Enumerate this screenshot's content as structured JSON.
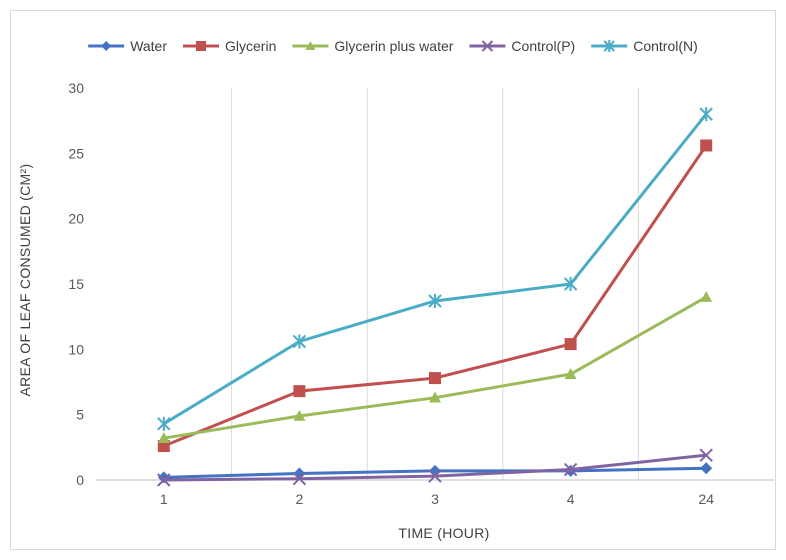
{
  "chart_data": {
    "type": "line",
    "categories": [
      "1",
      "2",
      "3",
      "4",
      "24"
    ],
    "xlabel": "TIME (HOUR)",
    "ylabel": "AREA OF LEAF CONSUMED (CM²)",
    "ylim": [
      0,
      30
    ],
    "yticks": [
      "0",
      "5",
      "10",
      "15",
      "20",
      "25",
      "30"
    ],
    "grid": "vertical",
    "legend_position": "top",
    "series": [
      {
        "name": "Water",
        "color": "#4472C4",
        "marker": "diamond",
        "values": [
          0.2,
          0.5,
          0.7,
          0.7,
          0.9
        ]
      },
      {
        "name": "Glycerin",
        "color": "#C0504D",
        "marker": "square",
        "values": [
          2.6,
          6.8,
          7.8,
          10.4,
          25.6
        ]
      },
      {
        "name": "Glycerin plus water",
        "color": "#9BBB59",
        "marker": "triangle",
        "values": [
          3.2,
          4.9,
          6.3,
          8.1,
          14.0
        ]
      },
      {
        "name": "Control(P)",
        "color": "#8064A2",
        "marker": "x",
        "values": [
          0.0,
          0.1,
          0.3,
          0.8,
          1.9
        ]
      },
      {
        "name": "Control(N)",
        "color": "#4BACC6",
        "marker": "star",
        "values": [
          4.3,
          10.6,
          13.7,
          15.0,
          28.0
        ]
      }
    ]
  }
}
